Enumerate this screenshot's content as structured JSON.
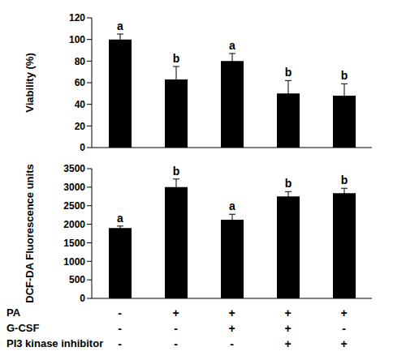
{
  "chart_data": [
    {
      "type": "bar",
      "y_label": "Viability (%)",
      "categories": [
        null,
        null,
        null,
        null,
        null
      ],
      "values": [
        100,
        63,
        80,
        50,
        48
      ],
      "errors": [
        5,
        12,
        7,
        12,
        11
      ],
      "annotations": [
        "a",
        "b",
        "a",
        "b",
        "b"
      ],
      "color": "#000000",
      "ylim": [
        0,
        120
      ],
      "yticks": [
        0,
        20,
        40,
        60,
        80,
        100,
        120
      ],
      "grid": false
    },
    {
      "type": "bar",
      "y_label": "DCF-DA Fluorescence units",
      "categories": [
        null,
        null,
        null,
        null,
        null
      ],
      "values": [
        1900,
        3000,
        2120,
        2750,
        2840
      ],
      "errors": [
        50,
        220,
        150,
        130,
        130
      ],
      "annotations": [
        "a",
        "b",
        "a",
        "b",
        "b"
      ],
      "color": "#000000",
      "ylim": [
        0,
        3500
      ],
      "yticks": [
        0,
        500,
        1000,
        1500,
        2000,
        2500,
        3000,
        3500
      ],
      "grid": false
    }
  ],
  "treatment_table": [
    {
      "label": "PA",
      "values": [
        "-",
        "+",
        "+",
        "+",
        "+"
      ]
    },
    {
      "label": "G-CSF",
      "values": [
        "-",
        "-",
        "+",
        "+",
        "-"
      ]
    },
    {
      "label": "PI3 kinase inhibitor",
      "values": [
        "-",
        "-",
        "-",
        "+",
        "+"
      ]
    }
  ]
}
